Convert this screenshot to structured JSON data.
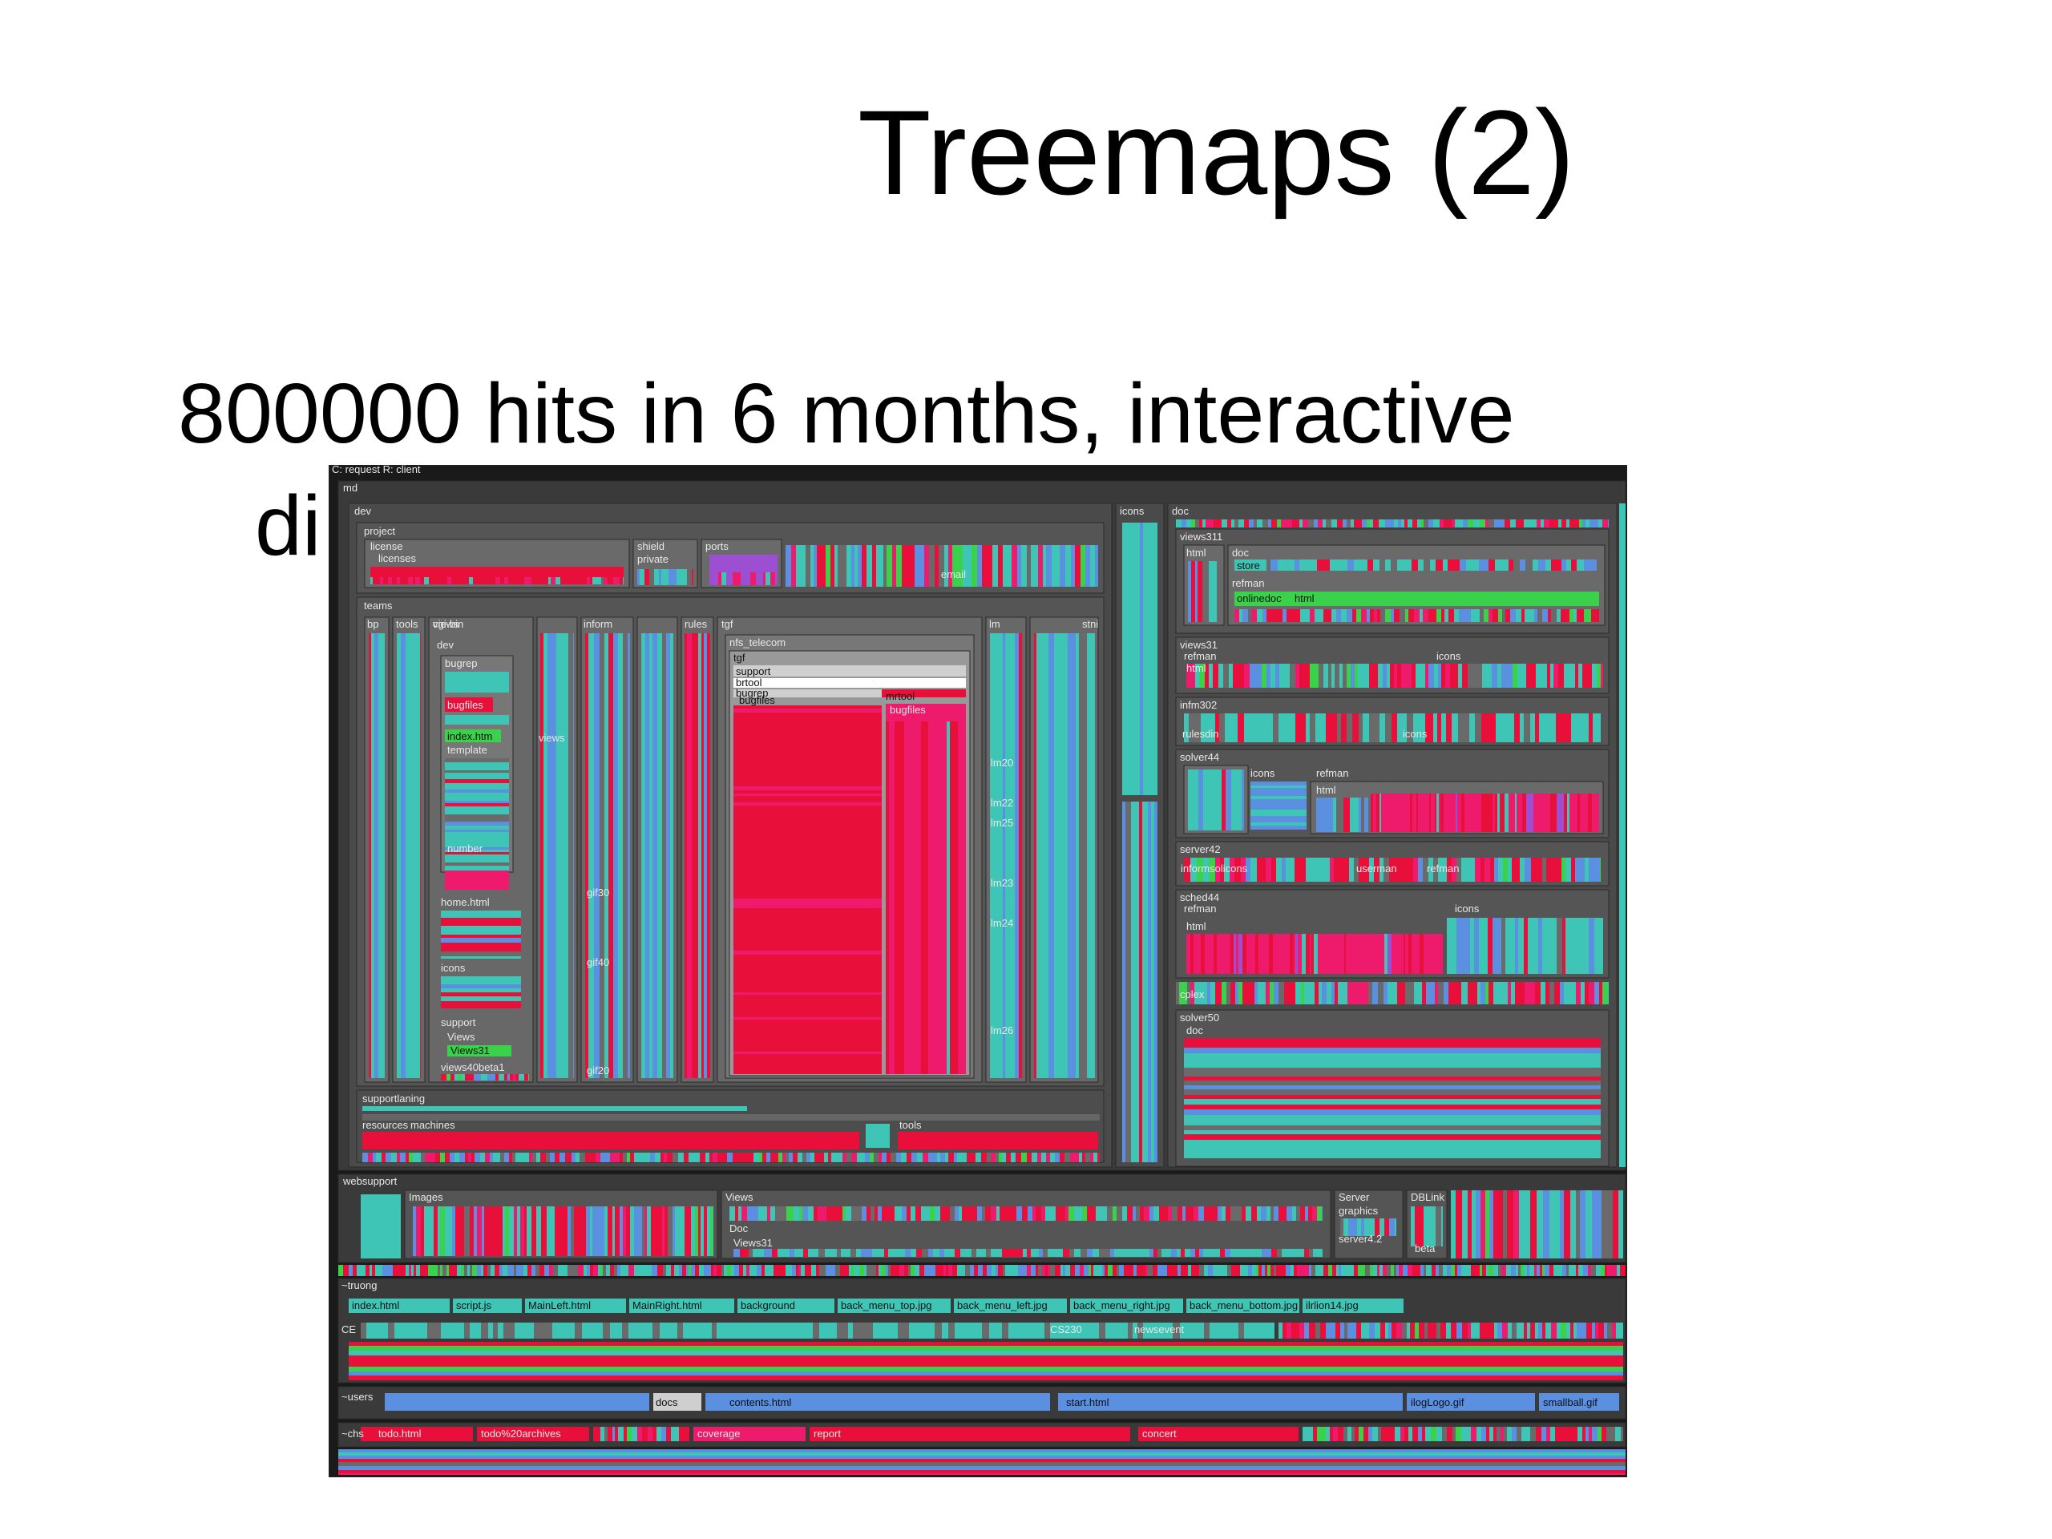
{
  "slide": {
    "title": "Treemaps (2)",
    "bullet_line1": "800000 hits in 6 months, interactive",
    "bullet_line2": "di"
  },
  "treemap": {
    "header": "C: request R: client",
    "labels": {
      "root": "md",
      "dev": "dev",
      "project": "project",
      "license": "license",
      "licenses": "licenses",
      "shield": "shield",
      "private": "private",
      "ports": "ports",
      "email": "email",
      "teams": "teams",
      "bp": "bp",
      "tools": "tools",
      "cgi_bin": "cgi-bin",
      "views": "views",
      "dev_sub": "dev",
      "bugrep": "bugrep",
      "bugfiles": "bugfiles",
      "index_htm": "index.htm",
      "template": "template",
      "number": "number",
      "home_html": "home.html",
      "icons_a": "icons",
      "support": "support",
      "views_a": "Views",
      "views31_a": "Views31",
      "views40beta1": "views40beta1",
      "views_b": "views",
      "inform": "inform",
      "rules": "rules",
      "tgf": "tgf",
      "nfs_telecom": "nfs_telecom",
      "tgf_sub": "tgf",
      "support_b": "support",
      "brtool": "brtool",
      "bugrep_b": "bugrep",
      "bugfiles_b": "bugfiles",
      "mrtool": "mrtool",
      "bugfiles_c": "bugfiles",
      "lm": "lm",
      "stni": "stni",
      "gif30": "gif30",
      "gif40": "gif40",
      "gif20": "gif20",
      "lm20": "lm20",
      "lm22": "lm22",
      "lm25": "lm25",
      "lm23": "lm23",
      "lm24": "lm24",
      "lm26": "lm26",
      "supportlaning": "supportlaning",
      "resources": "resources",
      "machines": "machines",
      "tools_b": "tools",
      "icons_top": "icons",
      "doc": "doc",
      "views311": "views311",
      "html_a": "html",
      "doc_b": "doc",
      "store": "store",
      "refman": "refman",
      "onlinedoc": "onlinedoc",
      "html_b": "html",
      "views31": "views31",
      "refman_b": "refman",
      "icons_b": "icons",
      "html_c": "html",
      "infm302": "infm302",
      "rulesdin": "rulesdin",
      "icons_c": "icons",
      "solver44": "solver44",
      "icons_d": "icons",
      "refman_c": "refman",
      "html_d": "html",
      "server42": "server42",
      "informsolicons": "informsolicons",
      "userman": "userman",
      "refman_d": "refman",
      "sched44": "sched44",
      "refman_e": "refman",
      "icons_e": "icons",
      "html_e": "html",
      "cplex": "cplex",
      "solver50": "solver50",
      "doc_c": "doc",
      "websupport": "websupport",
      "images": "Images",
      "views_c": "Views",
      "doc_d": "Doc",
      "views31_b": "Views31",
      "server": "Server",
      "graphics": "graphics",
      "server4_2": "server4.2",
      "dblink": "DBLink",
      "beta": "beta",
      "truong": "~truong",
      "index_html": "index.html",
      "script_js": "script.js",
      "mainleft_html": "MainLeft.html",
      "mainright_html": "MainRight.html",
      "background": "background",
      "back_menu_top": "back_menu_top.jpg",
      "back_menu_left": "back_menu_left.jpg",
      "back_menu_right": "back_menu_right.jpg",
      "back_menu_bottom": "back_menu_bottom.jpg",
      "ilrlion14": "ilrlion14.jpg",
      "ce": "CE",
      "cs230": "CS230",
      "newsevent": "newsevent",
      "users": "~users",
      "docs": "docs",
      "contents_html": "contents.html",
      "start_html": "start.html",
      "ilogLogo": "ilogLogo.gif",
      "smallball": "smallball.gif",
      "chs": "~chs",
      "todo_html": "todo.html",
      "todo_archives": "todo%20archives",
      "coverage": "coverage",
      "report": "report",
      "concert": "concert"
    },
    "colors": {
      "background": "#111111",
      "frame": "#555555",
      "frame_light": "#6a6a6a",
      "red": "#e8103a",
      "pink": "#ee1a6b",
      "teal": "#3fc5b5",
      "blue": "#5b8fe0",
      "green": "#3ad24a",
      "purple": "#9c4fd0",
      "light": "#cfcfcf"
    }
  }
}
